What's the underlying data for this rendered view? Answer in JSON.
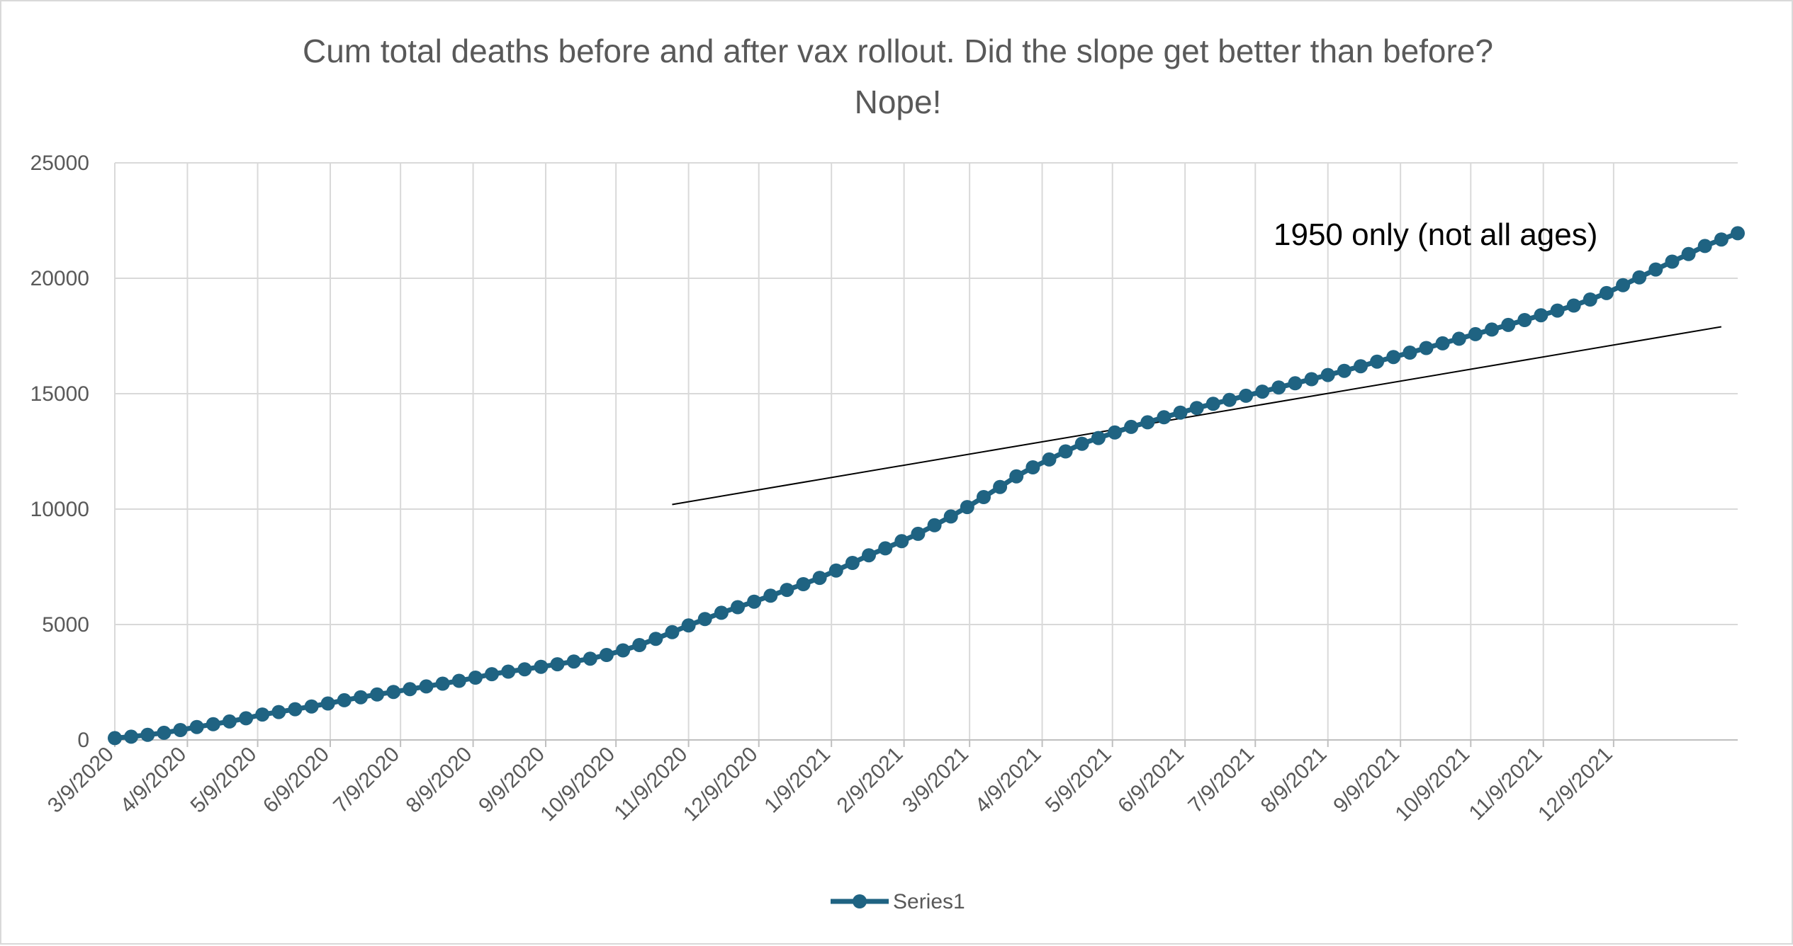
{
  "chart_data": {
    "type": "line",
    "title": "Cum total deaths before and after  vax  rollout. Did the slope get better than before?",
    "subtitle": "Nope!",
    "xlabel": "",
    "ylabel": "",
    "ylim": [
      0,
      25000
    ],
    "y_ticks": [
      "0",
      "5000",
      "10000",
      "15000",
      "20000",
      "25000"
    ],
    "x_tick_labels": [
      "3/9/2020",
      "4/9/2020",
      "5/9/2020",
      "6/9/2020",
      "7/9/2020",
      "8/9/2020",
      "9/9/2020",
      "10/9/2020",
      "11/9/2020",
      "12/9/2020",
      "1/9/2021",
      "2/9/2021",
      "3/9/2021",
      "4/9/2021",
      "5/9/2021",
      "6/9/2021",
      "7/9/2021",
      "8/9/2021",
      "9/9/2021",
      "10/9/2021",
      "11/9/2021",
      "12/9/2021"
    ],
    "x_start": "3/9/2020",
    "x_step_days": 7,
    "grid": true,
    "legend_position": "bottom",
    "series": [
      {
        "name": "Series1",
        "color": "#1f6382",
        "values": [
          80,
          140,
          220,
          310,
          430,
          560,
          680,
          800,
          940,
          1100,
          1210,
          1330,
          1450,
          1580,
          1720,
          1850,
          1970,
          2080,
          2200,
          2320,
          2440,
          2560,
          2700,
          2850,
          2960,
          3060,
          3170,
          3280,
          3400,
          3520,
          3680,
          3880,
          4110,
          4380,
          4670,
          4960,
          5240,
          5510,
          5750,
          5990,
          6250,
          6500,
          6750,
          7020,
          7340,
          7670,
          8000,
          8300,
          8610,
          8930,
          9300,
          9680,
          10090,
          10520,
          10960,
          11420,
          11810,
          12150,
          12500,
          12830,
          13080,
          13320,
          13560,
          13760,
          13980,
          14180,
          14380,
          14560,
          14730,
          14910,
          15090,
          15270,
          15450,
          15630,
          15810,
          15990,
          16190,
          16390,
          16590,
          16780,
          16980,
          17180,
          17380,
          17580,
          17780,
          17980,
          18190,
          18400,
          18600,
          18820,
          19080,
          19360,
          19700,
          20040,
          20380,
          20720,
          21050,
          21400,
          21680,
          21950
        ]
      }
    ],
    "annotations": [
      {
        "text": "1950 only (not all ages)"
      }
    ],
    "trend_line": {
      "x_start": "11/2/2020",
      "y_start": 10200,
      "x_end": "1/24/2022",
      "y_end": 17900,
      "color": "#000000"
    }
  }
}
